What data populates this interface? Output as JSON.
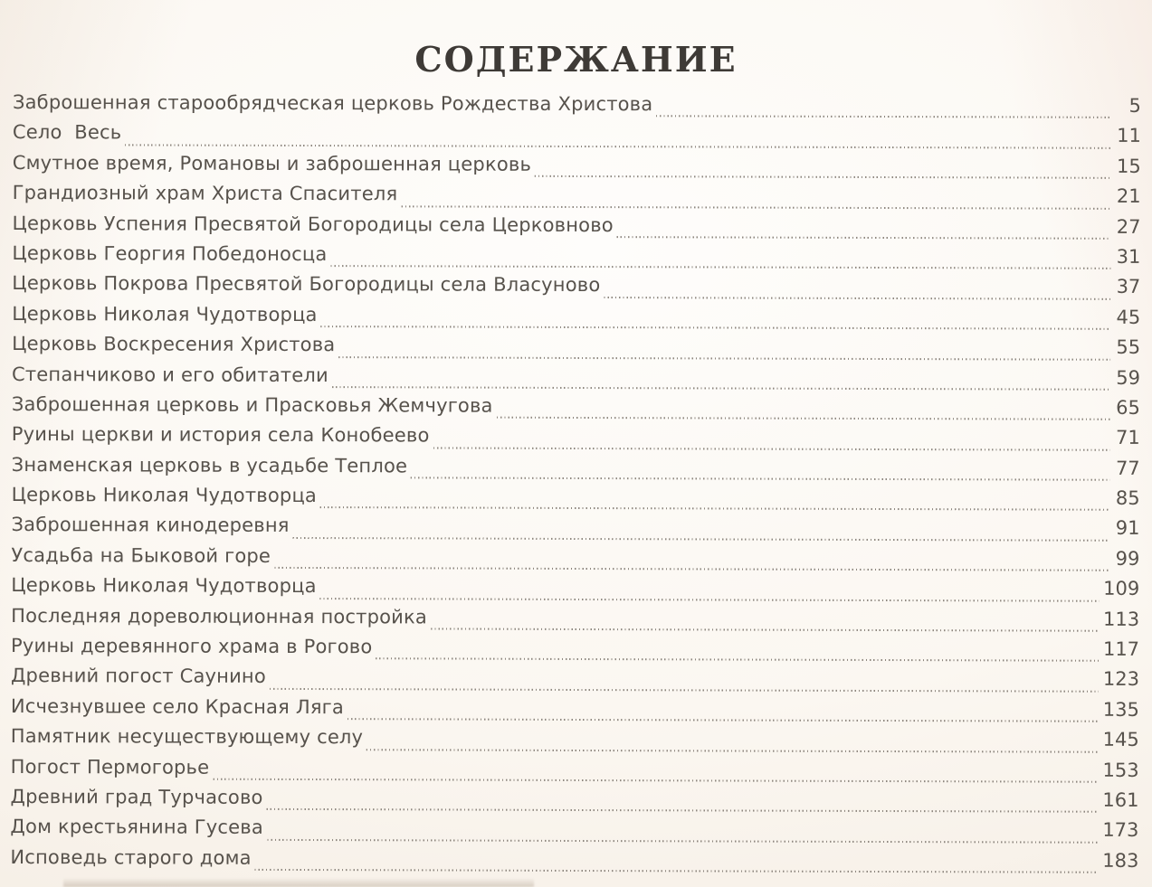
{
  "colors": {
    "paper": "#fbf8f3",
    "text": "#57524c",
    "title": "#3e3a36",
    "leader_dots": "#8d867e"
  },
  "toc": {
    "title": "СОДЕРЖАНИЕ",
    "entries": [
      {
        "label": "Заброшенная старообрядческая церковь Рождества Христова",
        "page": "5"
      },
      {
        "label": "Село  Весь",
        "page": "11"
      },
      {
        "label": "Смутное время, Романовы и заброшенная церковь",
        "page": "15"
      },
      {
        "label": "Грандиозный храм Христа Спасителя",
        "page": "21"
      },
      {
        "label": "Церковь Успения Пресвятой Богородицы села Церковново",
        "page": "27"
      },
      {
        "label": "Церковь Георгия Победоносца",
        "page": "31"
      },
      {
        "label": "Церковь Покрова Пресвятой Богородицы села Власуново",
        "page": "37"
      },
      {
        "label": "Церковь Николая Чудотворца",
        "page": "45"
      },
      {
        "label": "Церковь Воскресения Христова",
        "page": "55"
      },
      {
        "label": "Степанчиково и его обитатели",
        "page": "59"
      },
      {
        "label": "Заброшенная церковь и Прасковья Жемчугова",
        "page": "65"
      },
      {
        "label": "Руины церкви и история села Конобеево",
        "page": "71"
      },
      {
        "label": "Знаменская церковь в усадьбе Теплое",
        "page": "77"
      },
      {
        "label": "Церковь Николая Чудотворца",
        "page": "85"
      },
      {
        "label": "Заброшенная кинодеревня",
        "page": "91"
      },
      {
        "label": "Усадьба на Быковой горе",
        "page": "99"
      },
      {
        "label": "Церковь Николая Чудотворца",
        "page": "109"
      },
      {
        "label": "Последняя дореволюционная постройка",
        "page": "113"
      },
      {
        "label": "Руины деревянного храма в Рогово",
        "page": "117"
      },
      {
        "label": "Древний погост Саунино",
        "page": "123"
      },
      {
        "label": "Исчезнувшее село Красная Ляга",
        "page": "135"
      },
      {
        "label": "Памятник несуществующему селу",
        "page": "145"
      },
      {
        "label": "Погост Пермогорье",
        "page": "153"
      },
      {
        "label": "Древний град Турчасово",
        "page": "161"
      },
      {
        "label": "Дом крестьянина Гусева",
        "page": "173"
      },
      {
        "label": "Исповедь старого дома",
        "page": "183"
      }
    ]
  }
}
